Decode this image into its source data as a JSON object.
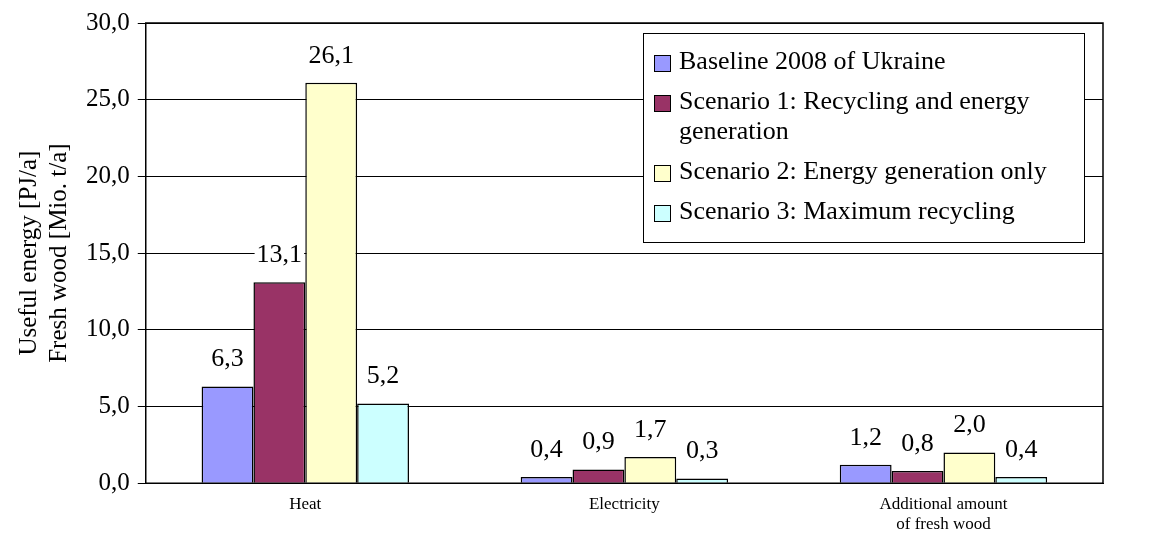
{
  "chart_data": {
    "type": "bar",
    "ylabel": "Useful energy [PJ/a]\nFresh wood [Mio. t/a]",
    "categories": [
      "Heat",
      "Electricity",
      "Additional amount of fresh wood"
    ],
    "series": [
      {
        "name": "Baseline 2008 of Ukraine",
        "color": "#9999ff",
        "values": [
          6.3,
          0.4,
          1.2
        ],
        "value_labels": [
          "6,3",
          "0,4",
          "1,2"
        ]
      },
      {
        "name": "Scenario 1: Recycling and energy generation",
        "color": "#993366",
        "values": [
          13.1,
          0.9,
          0.8
        ],
        "value_labels": [
          "13,1",
          "0,9",
          "0,8"
        ]
      },
      {
        "name": "Scenario 2: Energy generation only",
        "color": "#ffffcc",
        "values": [
          26.1,
          1.7,
          2.0
        ],
        "value_labels": [
          "26,1",
          "1,7",
          "2,0"
        ]
      },
      {
        "name": "Scenario 3: Maximum recycling",
        "color": "#ccffff",
        "values": [
          5.2,
          0.3,
          0.4
        ],
        "value_labels": [
          "5,2",
          "0,3",
          "0,4"
        ]
      }
    ],
    "ylim": [
      0,
      30
    ],
    "yticks": [
      {
        "value": 0,
        "label": "0,0"
      },
      {
        "value": 5,
        "label": "5,0"
      },
      {
        "value": 10,
        "label": "10,0"
      },
      {
        "value": 15,
        "label": "15,0"
      },
      {
        "value": 20,
        "label": "20,0"
      },
      {
        "value": 25,
        "label": "25,0"
      },
      {
        "value": 30,
        "label": "30,0"
      }
    ],
    "grid": "y",
    "legend": "top right"
  }
}
